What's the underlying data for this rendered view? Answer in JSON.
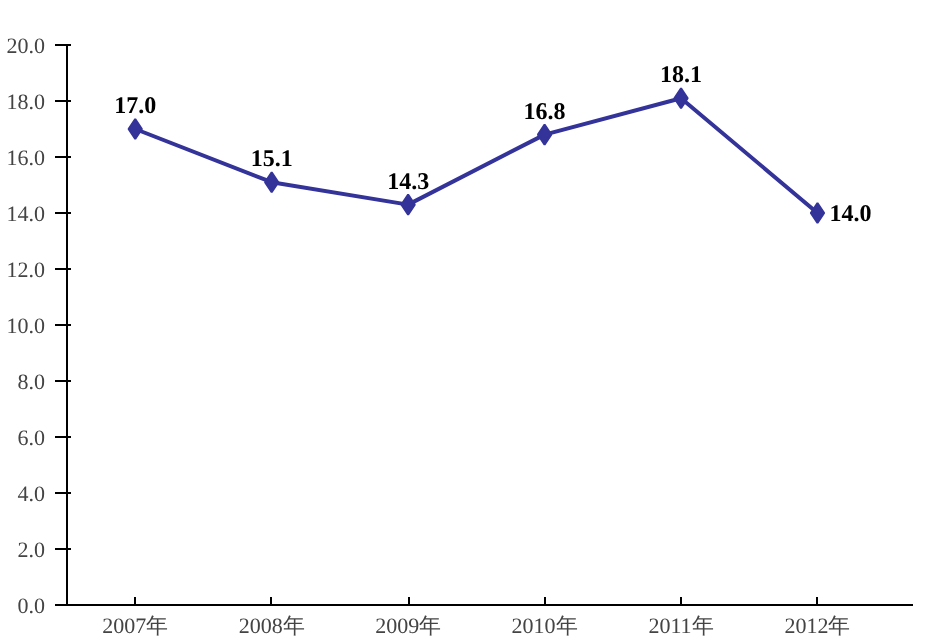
{
  "chart_data": {
    "type": "line",
    "categories": [
      "2007年",
      "2008年",
      "2009年",
      "2010年",
      "2011年",
      "2012年"
    ],
    "series": [
      {
        "color": "#333399",
        "values": [
          17.0,
          15.1,
          14.3,
          16.8,
          18.1,
          14.0
        ],
        "value_labels": [
          "17.0",
          "15.1",
          "14.3",
          "16.8",
          "18.1",
          "14.0"
        ]
      }
    ],
    "ylim": [
      0,
      20
    ],
    "yticks": [
      {
        "value": 0,
        "label": "0.0"
      },
      {
        "value": 2,
        "label": "2.0"
      },
      {
        "value": 4,
        "label": "4.0"
      },
      {
        "value": 6,
        "label": "6.0"
      },
      {
        "value": 8,
        "label": "8.0"
      },
      {
        "value": 10,
        "label": "10.0"
      },
      {
        "value": 12,
        "label": "12.0"
      },
      {
        "value": 14,
        "label": "14.0"
      },
      {
        "value": 16,
        "label": "16.0"
      },
      {
        "value": 18,
        "label": "18.0"
      },
      {
        "value": 20,
        "label": "20.0"
      }
    ],
    "grid": false,
    "marker": "diamond",
    "line_style": "solid"
  }
}
